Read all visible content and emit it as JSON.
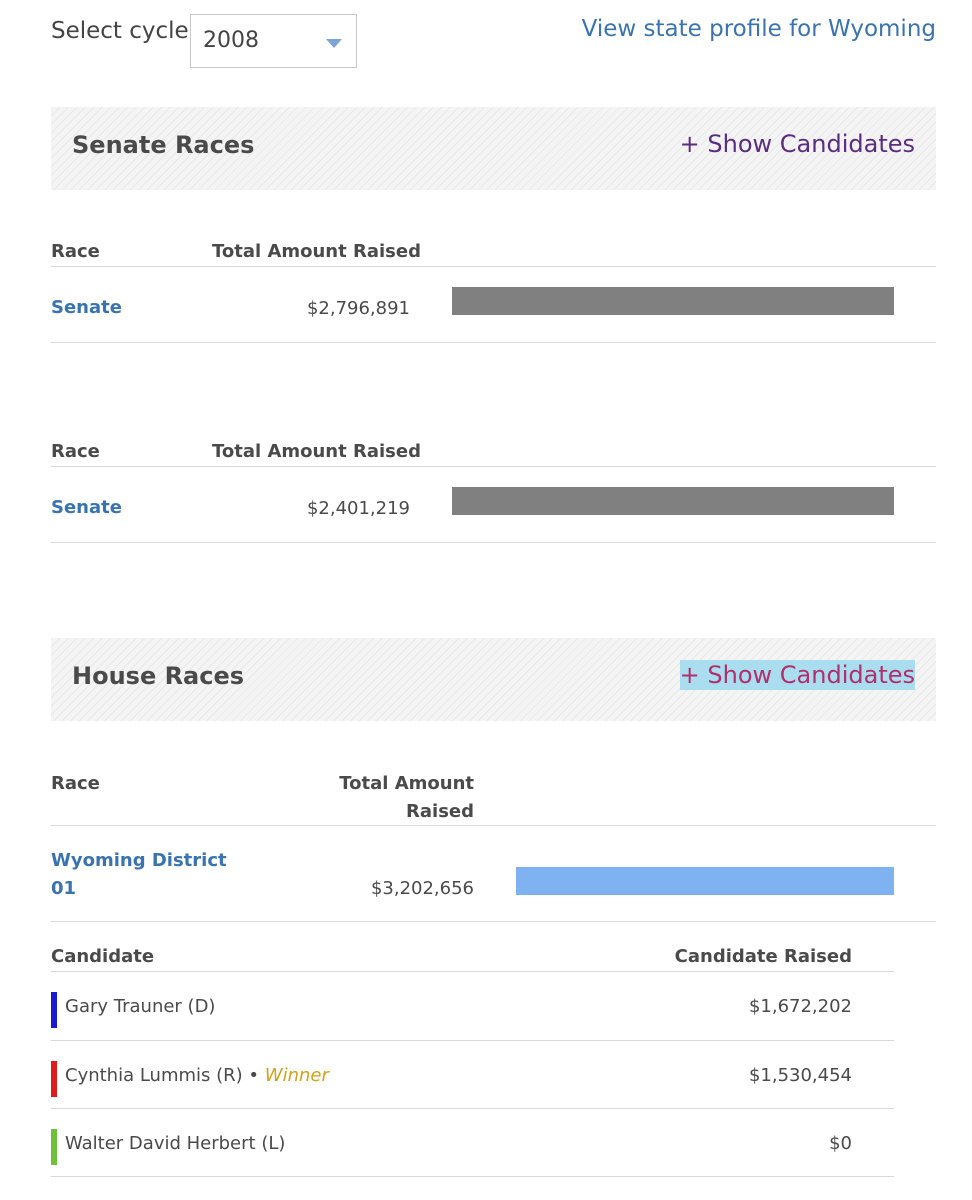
{
  "cycle": {
    "label": "Select cycle:",
    "selected": "2008"
  },
  "state_profile_link": "View state profile for Wyoming",
  "senate": {
    "title": "Senate Races",
    "show_label": "+ Show Candidates",
    "tables": [
      {
        "col_race": "Race",
        "col_total": "Total Amount Raised",
        "race": "Senate",
        "amount": "$2,796,891",
        "amount_value": 2796891
      },
      {
        "col_race": "Race",
        "col_total": "Total Amount Raised",
        "race": "Senate",
        "amount": "$2,401,219",
        "amount_value": 2401219
      }
    ]
  },
  "house": {
    "title": "House Races",
    "show_label": "+ Show Candidates",
    "col_race": "Race",
    "col_total_line1": "Total Amount",
    "col_total_line2": "Raised",
    "race_line1": "Wyoming District",
    "race_line2": "01",
    "amount": "$3,202,656",
    "amount_value": 3202656,
    "candidates_header": {
      "name": "Candidate",
      "raised": "Candidate Raised"
    },
    "candidates": [
      {
        "name": "Gary Trauner (D)",
        "raised": "$1,672,202",
        "party_color": "#1a1ad6",
        "winner": ""
      },
      {
        "name": "Cynthia Lummis (R)",
        "raised": "$1,530,454",
        "party_color": "#e01b1b",
        "winner": "Winner",
        "sep": " •"
      },
      {
        "name": "Walter David Herbert (L)",
        "raised": "$0",
        "party_color": "#6cc33a",
        "winner": ""
      }
    ]
  },
  "colors": {
    "senate_bar": "#808080",
    "house_bar": "#7fb2f0",
    "link": "#3a74b0"
  }
}
